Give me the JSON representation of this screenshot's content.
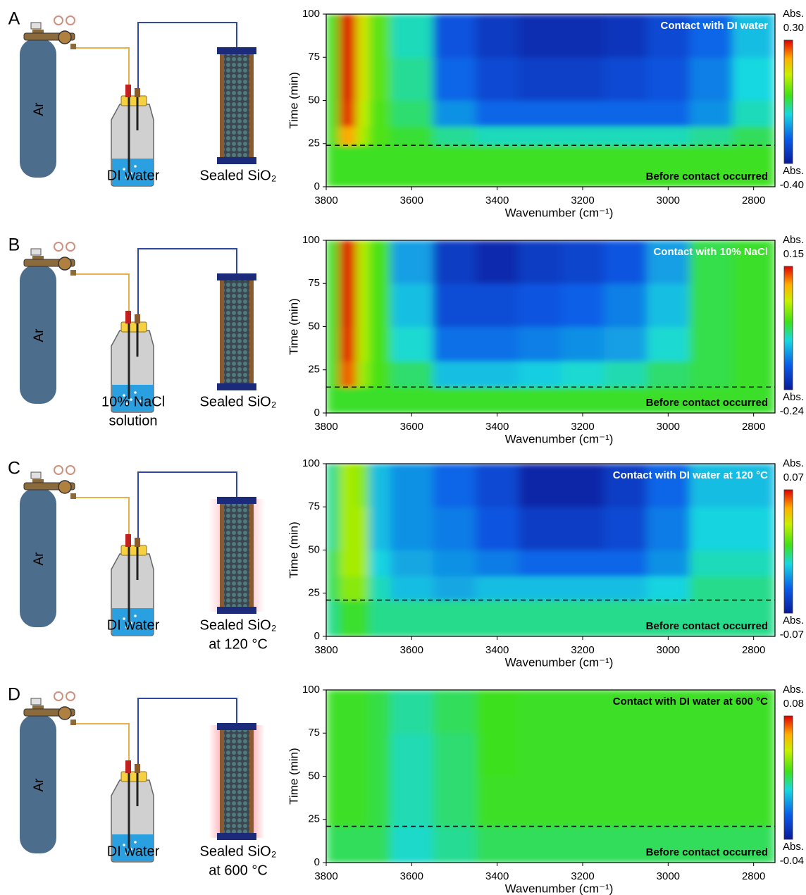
{
  "panels": [
    {
      "letter": "A",
      "gas": "Ar",
      "liquid": [
        "DI water"
      ],
      "sample": [
        "Sealed SiO₂"
      ]
    },
    {
      "letter": "B",
      "gas": "Ar",
      "liquid": [
        "10% NaCl",
        "solution"
      ],
      "sample": [
        "Sealed SiO₂"
      ]
    },
    {
      "letter": "C",
      "gas": "Ar",
      "liquid": [
        "DI water"
      ],
      "sample": [
        "Sealed SiO₂",
        "at 120 °C"
      ]
    },
    {
      "letter": "D",
      "gas": "Ar",
      "liquid": [
        "DI water"
      ],
      "sample": [
        "Sealed SiO₂",
        "at 600 °C"
      ]
    }
  ],
  "chart_data": [
    {
      "type": "heatmap",
      "annotation": "Contact with DI water",
      "annotation_color": "#ffffff",
      "region_label": "Before contact occurred",
      "contact_time": 24,
      "xlabel": "Wavenumber (cm⁻¹)",
      "ylabel": "Time (min)",
      "xlim": [
        3800,
        2750
      ],
      "xticks": [
        3800,
        3600,
        3400,
        3200,
        3000,
        2800
      ],
      "ylim": [
        0,
        100
      ],
      "yticks": [
        0,
        25,
        50,
        75,
        100
      ],
      "xbins": [
        3800,
        3770,
        3730,
        3700,
        3650,
        3550,
        3450,
        3350,
        3250,
        3150,
        3050,
        2950,
        2850,
        2750
      ],
      "ybins": [
        0,
        24,
        35,
        50,
        75,
        100
      ],
      "z": [
        [
          -0.02,
          -0.02,
          -0.02,
          -0.02,
          -0.02,
          -0.02,
          -0.02,
          -0.02,
          -0.02,
          -0.02,
          -0.02,
          -0.02,
          -0.02
        ],
        [
          -0.02,
          0.2,
          0.08,
          0.0,
          -0.03,
          -0.08,
          -0.1,
          -0.1,
          -0.1,
          -0.1,
          -0.1,
          -0.08,
          -0.05
        ],
        [
          -0.02,
          0.28,
          0.1,
          0.0,
          -0.06,
          -0.2,
          -0.25,
          -0.25,
          -0.25,
          -0.25,
          -0.25,
          -0.2,
          -0.1
        ],
        [
          -0.02,
          0.3,
          0.12,
          0.01,
          -0.08,
          -0.25,
          -0.3,
          -0.32,
          -0.32,
          -0.3,
          -0.28,
          -0.22,
          -0.12
        ],
        [
          -0.02,
          0.3,
          0.12,
          0.01,
          -0.1,
          -0.28,
          -0.33,
          -0.36,
          -0.36,
          -0.34,
          -0.3,
          -0.25,
          -0.15
        ]
      ],
      "colorbar": {
        "title": "Abs.",
        "lim": [
          -0.4,
          0.3
        ],
        "ticks": [
          {
            "value": -0.4,
            "label": "-0.40"
          },
          {
            "value": 0.3,
            "label": "0.30"
          }
        ]
      }
    },
    {
      "type": "heatmap",
      "annotation": "Contact with 10% NaCl",
      "annotation_color": "#ffffff",
      "region_label": "Before contact occurred",
      "contact_time": 15,
      "xlabel": "Wavenumber (cm⁻¹)",
      "ylabel": "Time (min)",
      "xlim": [
        3800,
        2750
      ],
      "xticks": [
        3800,
        3600,
        3400,
        3200,
        3000,
        2800
      ],
      "ylim": [
        0,
        100
      ],
      "yticks": [
        0,
        25,
        50,
        75,
        100
      ],
      "xbins": [
        3800,
        3770,
        3730,
        3700,
        3650,
        3550,
        3450,
        3350,
        3250,
        3150,
        3050,
        2950,
        2850,
        2750
      ],
      "ybins": [
        0,
        15,
        30,
        50,
        75,
        100
      ],
      "z": [
        [
          -0.03,
          -0.03,
          -0.03,
          -0.03,
          -0.03,
          -0.03,
          -0.03,
          -0.03,
          -0.03,
          -0.03,
          -0.03,
          -0.03,
          -0.03
        ],
        [
          -0.03,
          0.12,
          0.02,
          -0.02,
          -0.05,
          -0.1,
          -0.1,
          -0.09,
          -0.08,
          -0.07,
          -0.05,
          -0.04,
          -0.03
        ],
        [
          -0.03,
          0.14,
          0.03,
          -0.02,
          -0.08,
          -0.15,
          -0.15,
          -0.14,
          -0.13,
          -0.12,
          -0.08,
          -0.04,
          -0.03
        ],
        [
          -0.03,
          0.15,
          0.03,
          -0.02,
          -0.1,
          -0.18,
          -0.18,
          -0.17,
          -0.16,
          -0.14,
          -0.1,
          -0.04,
          -0.03
        ],
        [
          -0.03,
          0.15,
          0.03,
          -0.02,
          -0.12,
          -0.2,
          -0.22,
          -0.2,
          -0.19,
          -0.17,
          -0.12,
          -0.04,
          -0.03
        ]
      ],
      "colorbar": {
        "title": "Abs.",
        "lim": [
          -0.24,
          0.15
        ],
        "ticks": [
          -0.24,
          0.15
        ]
      }
    },
    {
      "type": "heatmap",
      "annotation": "Contact with DI water at 120 °C",
      "annotation_color": "#ffffff",
      "region_label": "Before contact occurred",
      "contact_time": 21,
      "xlabel": "Wavenumber (cm⁻¹)",
      "ylabel": "Time (min)",
      "xlim": [
        3800,
        2750
      ],
      "xticks": [
        3800,
        3600,
        3400,
        3200,
        3000,
        2800
      ],
      "ylim": [
        0,
        100
      ],
      "yticks": [
        0,
        25,
        50,
        75,
        100
      ],
      "xbins": [
        3800,
        3770,
        3730,
        3700,
        3650,
        3550,
        3450,
        3350,
        3250,
        3150,
        3050,
        2950,
        2850,
        2750
      ],
      "ybins": [
        0,
        21,
        35,
        50,
        75,
        100
      ],
      "z": [
        [
          -0.005,
          0.005,
          0.005,
          -0.005,
          -0.005,
          -0.005,
          -0.005,
          -0.005,
          -0.005,
          -0.005,
          -0.005,
          -0.005,
          -0.005
        ],
        [
          0.0,
          0.02,
          0.02,
          -0.01,
          -0.02,
          -0.025,
          -0.02,
          -0.02,
          -0.02,
          -0.02,
          -0.015,
          -0.005,
          -0.005
        ],
        [
          0.0,
          0.025,
          0.025,
          -0.015,
          -0.025,
          -0.03,
          -0.035,
          -0.04,
          -0.04,
          -0.04,
          -0.03,
          -0.01,
          -0.01
        ],
        [
          -0.005,
          0.025,
          0.025,
          -0.02,
          -0.03,
          -0.035,
          -0.045,
          -0.055,
          -0.055,
          -0.05,
          -0.035,
          -0.015,
          -0.015
        ],
        [
          -0.005,
          0.025,
          0.02,
          -0.02,
          -0.03,
          -0.04,
          -0.05,
          -0.065,
          -0.065,
          -0.055,
          -0.04,
          -0.02,
          -0.02
        ]
      ],
      "colorbar": {
        "title": "Abs.",
        "lim": [
          -0.07,
          0.07
        ],
        "ticks": [
          -0.07,
          0.07
        ]
      }
    },
    {
      "type": "heatmap",
      "annotation": "Contact with DI water at 600 °C",
      "annotation_color": "#000000",
      "region_label": "Before contact occurred",
      "contact_time": 21,
      "xlabel": "Wavenumber (cm⁻¹)",
      "ylabel": "Time (min)",
      "xlim": [
        3800,
        2750
      ],
      "xticks": [
        3800,
        3600,
        3400,
        3200,
        3000,
        2800
      ],
      "ylim": [
        0,
        100
      ],
      "yticks": [
        0,
        25,
        50,
        75,
        100
      ],
      "xbins": [
        3800,
        3770,
        3730,
        3700,
        3650,
        3550,
        3450,
        3350,
        3250,
        3150,
        3050,
        2950,
        2850,
        2750
      ],
      "ybins": [
        0,
        21,
        50,
        75,
        100
      ],
      "z": [
        [
          0.02,
          0.02,
          0.02,
          0.02,
          0.01,
          0.015,
          0.02,
          0.02,
          0.02,
          0.02,
          0.02,
          0.02,
          0.02
        ],
        [
          0.025,
          0.025,
          0.025,
          0.022,
          0.012,
          0.018,
          0.025,
          0.025,
          0.025,
          0.025,
          0.025,
          0.025,
          0.025
        ],
        [
          0.025,
          0.025,
          0.025,
          0.022,
          0.012,
          0.018,
          0.026,
          0.025,
          0.025,
          0.025,
          0.025,
          0.025,
          0.025
        ],
        [
          0.025,
          0.025,
          0.025,
          0.022,
          0.014,
          0.02,
          0.026,
          0.025,
          0.025,
          0.025,
          0.025,
          0.025,
          0.025
        ]
      ],
      "colorbar": {
        "title": "Abs.",
        "lim": [
          -0.04,
          0.08
        ],
        "ticks": [
          -0.04,
          0.08
        ]
      }
    }
  ]
}
